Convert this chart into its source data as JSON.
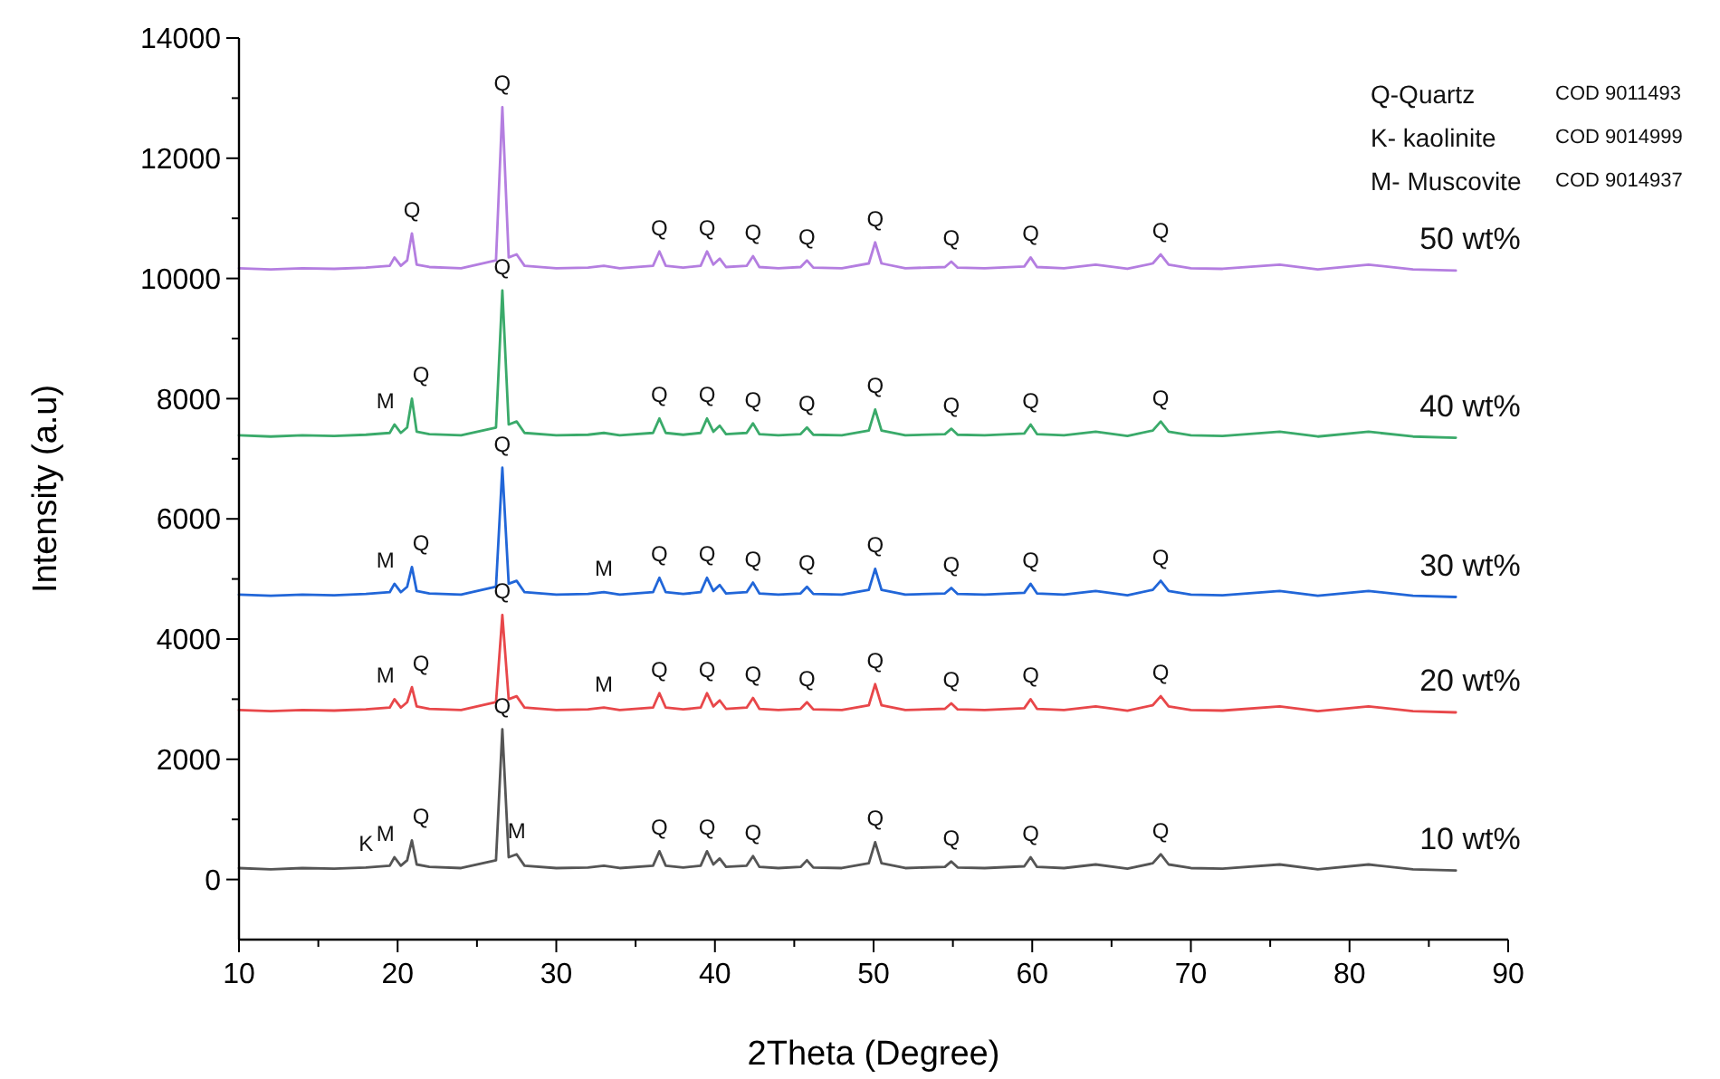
{
  "chart_data": {
    "type": "line",
    "xlabel": "2Theta (Degree)",
    "ylabel": "Intensity (a.u)",
    "xlim": [
      10,
      90
    ],
    "ylim": [
      -1000,
      14000
    ],
    "xticks": [
      10,
      {
        "value": 15,
        "label": null
      },
      20,
      {
        "value": 25,
        "label": null
      },
      30,
      {
        "value": 35,
        "label": null
      },
      40,
      {
        "value": 45,
        "label": null
      },
      50,
      {
        "value": 55,
        "label": null
      },
      60,
      {
        "value": 65,
        "label": null
      },
      70,
      {
        "value": 75,
        "label": null
      },
      80,
      {
        "value": 85,
        "label": null
      },
      90
    ],
    "yticks": [
      0,
      {
        "value": 1000,
        "label": null
      },
      2000,
      {
        "value": 3000,
        "label": null
      },
      4000,
      {
        "value": 5000,
        "label": null
      },
      6000,
      {
        "value": 7000,
        "label": null
      },
      8000,
      {
        "value": 9000,
        "label": null
      },
      10000,
      {
        "value": 11000,
        "label": null
      },
      12000,
      {
        "value": 13000,
        "label": null
      },
      14000
    ],
    "x": [
      10,
      12,
      14,
      16,
      18,
      19.5,
      19.8,
      20.2,
      20.6,
      20.9,
      21.2,
      22,
      24,
      26.2,
      26.6,
      27.0,
      27.5,
      28,
      30,
      32,
      33,
      34,
      36.1,
      36.5,
      36.9,
      38,
      39.1,
      39.5,
      39.9,
      40.3,
      40.7,
      42.0,
      42.4,
      42.8,
      44,
      45.4,
      45.8,
      46.2,
      48,
      49.7,
      50.1,
      50.5,
      52,
      54.5,
      54.9,
      55.3,
      57,
      59.5,
      59.9,
      60.3,
      62,
      64,
      66,
      67.6,
      68.1,
      68.6,
      70,
      72,
      75.6,
      78,
      81.2,
      84,
      86.7
    ],
    "series": [
      {
        "name": "50 wt%",
        "color": "#b47ee0",
        "values": [
          10170,
          10150,
          10170,
          10160,
          10180,
          10210,
          10350,
          10210,
          10300,
          10750,
          10230,
          10190,
          10170,
          10300,
          12850,
          10350,
          10400,
          10210,
          10170,
          10180,
          10210,
          10170,
          10210,
          10450,
          10210,
          10180,
          10210,
          10450,
          10230,
          10330,
          10190,
          10210,
          10370,
          10190,
          10170,
          10190,
          10300,
          10180,
          10170,
          10250,
          10600,
          10250,
          10170,
          10190,
          10280,
          10180,
          10170,
          10200,
          10350,
          10190,
          10170,
          10230,
          10160,
          10250,
          10400,
          10230,
          10170,
          10160,
          10230,
          10150,
          10230,
          10150,
          10130
        ]
      },
      {
        "name": "40 wt%",
        "color": "#3aaa6a",
        "values": [
          7390,
          7370,
          7390,
          7380,
          7400,
          7430,
          7570,
          7430,
          7520,
          8000,
          7450,
          7410,
          7390,
          7520,
          9800,
          7570,
          7620,
          7430,
          7390,
          7400,
          7430,
          7390,
          7430,
          7670,
          7430,
          7400,
          7430,
          7670,
          7450,
          7550,
          7410,
          7430,
          7590,
          7410,
          7390,
          7410,
          7520,
          7400,
          7390,
          7470,
          7820,
          7470,
          7390,
          7410,
          7500,
          7400,
          7390,
          7420,
          7570,
          7410,
          7390,
          7450,
          7380,
          7470,
          7620,
          7450,
          7390,
          7380,
          7450,
          7370,
          7450,
          7370,
          7350
        ]
      },
      {
        "name": "30 wt%",
        "color": "#2166d8",
        "values": [
          4740,
          4720,
          4740,
          4730,
          4750,
          4780,
          4920,
          4780,
          4870,
          5200,
          4800,
          4760,
          4740,
          4870,
          6850,
          4920,
          4970,
          4780,
          4740,
          4750,
          4780,
          4740,
          4780,
          5020,
          4780,
          4750,
          4780,
          5020,
          4800,
          4900,
          4760,
          4780,
          4940,
          4760,
          4740,
          4760,
          4870,
          4750,
          4740,
          4820,
          5170,
          4820,
          4740,
          4760,
          4850,
          4750,
          4740,
          4770,
          4920,
          4760,
          4740,
          4800,
          4730,
          4820,
          4970,
          4800,
          4740,
          4730,
          4800,
          4720,
          4800,
          4720,
          4700
        ]
      },
      {
        "name": "20 wt%",
        "color": "#e8474a",
        "values": [
          2820,
          2800,
          2820,
          2810,
          2830,
          2860,
          3000,
          2860,
          2950,
          3200,
          2880,
          2840,
          2820,
          2950,
          4400,
          3000,
          3050,
          2860,
          2820,
          2830,
          2860,
          2820,
          2860,
          3100,
          2860,
          2830,
          2860,
          3100,
          2880,
          2980,
          2840,
          2860,
          3020,
          2840,
          2820,
          2840,
          2950,
          2830,
          2820,
          2900,
          3250,
          2900,
          2820,
          2840,
          2930,
          2830,
          2820,
          2850,
          3000,
          2840,
          2820,
          2880,
          2810,
          2900,
          3050,
          2880,
          2820,
          2810,
          2880,
          2800,
          2880,
          2800,
          2780
        ]
      },
      {
        "name": "10 wt%",
        "color": "#555555",
        "values": [
          190,
          170,
          190,
          180,
          200,
          230,
          370,
          230,
          320,
          650,
          250,
          210,
          190,
          320,
          2500,
          370,
          420,
          230,
          190,
          200,
          230,
          190,
          230,
          470,
          230,
          200,
          230,
          470,
          250,
          350,
          210,
          230,
          390,
          210,
          190,
          210,
          320,
          200,
          190,
          270,
          620,
          270,
          190,
          210,
          300,
          200,
          190,
          220,
          370,
          210,
          190,
          250,
          180,
          270,
          420,
          250,
          190,
          180,
          250,
          170,
          250,
          170,
          150
        ]
      }
    ],
    "annotations": [
      "Q-Quartz",
      "COD 9011493",
      "K- kaolinite",
      "COD 9014999",
      "M- Muscovite",
      "COD 9014937",
      {
        "text": "Q",
        "x": 20.9,
        "y": 10750
      },
      {
        "text": "Q",
        "x": 26.6,
        "y": 12850
      },
      {
        "text": "Q",
        "x": 36.5,
        "y": 10450
      },
      {
        "text": "Q",
        "x": 39.5,
        "y": 10450
      },
      {
        "text": "Q",
        "x": 42.4,
        "y": 10370
      },
      {
        "text": "Q",
        "x": 45.8,
        "y": 10300
      },
      {
        "text": "Q",
        "x": 50.1,
        "y": 10600
      },
      {
        "text": "Q",
        "x": 54.9,
        "y": 10280
      },
      {
        "text": "Q",
        "x": 59.9,
        "y": 10350
      },
      {
        "text": "Q",
        "x": 68.1,
        "y": 10400
      },
      {
        "text": "M",
        "x": 19.8,
        "y": 7570
      },
      {
        "text": "Q",
        "x": 20.9,
        "y": 8000
      },
      {
        "text": "Q",
        "x": 26.6,
        "y": 9800
      },
      {
        "text": "Q",
        "x": 36.5,
        "y": 7670
      },
      {
        "text": "Q",
        "x": 39.5,
        "y": 7670
      },
      {
        "text": "Q",
        "x": 42.4,
        "y": 7590
      },
      {
        "text": "Q",
        "x": 45.8,
        "y": 7520
      },
      {
        "text": "Q",
        "x": 50.1,
        "y": 7820
      },
      {
        "text": "Q",
        "x": 54.9,
        "y": 7500
      },
      {
        "text": "Q",
        "x": 59.9,
        "y": 7570
      },
      {
        "text": "Q",
        "x": 68.1,
        "y": 7620
      },
      {
        "text": "M",
        "x": 19.8,
        "y": 4920
      },
      {
        "text": "Q",
        "x": 20.9,
        "y": 5200
      },
      {
        "text": "Q",
        "x": 26.6,
        "y": 6850
      },
      {
        "text": "M",
        "x": 33,
        "y": 4780
      },
      {
        "text": "Q",
        "x": 36.5,
        "y": 5020
      },
      {
        "text": "Q",
        "x": 39.5,
        "y": 5020
      },
      {
        "text": "Q",
        "x": 42.4,
        "y": 4940
      },
      {
        "text": "Q",
        "x": 45.8,
        "y": 4870
      },
      {
        "text": "Q",
        "x": 50.1,
        "y": 5170
      },
      {
        "text": "Q",
        "x": 54.9,
        "y": 4850
      },
      {
        "text": "Q",
        "x": 59.9,
        "y": 4920
      },
      {
        "text": "Q",
        "x": 68.1,
        "y": 4970
      },
      {
        "text": "M",
        "x": 19.8,
        "y": 3000
      },
      {
        "text": "Q",
        "x": 20.9,
        "y": 3200
      },
      {
        "text": "Q",
        "x": 26.6,
        "y": 4400
      },
      {
        "text": "M",
        "x": 33,
        "y": 2860
      },
      {
        "text": "Q",
        "x": 36.5,
        "y": 3100
      },
      {
        "text": "Q",
        "x": 39.5,
        "y": 3100
      },
      {
        "text": "Q",
        "x": 42.4,
        "y": 3020
      },
      {
        "text": "Q",
        "x": 45.8,
        "y": 2950
      },
      {
        "text": "Q",
        "x": 50.1,
        "y": 3250
      },
      {
        "text": "Q",
        "x": 54.9,
        "y": 2930
      },
      {
        "text": "Q",
        "x": 59.9,
        "y": 3000
      },
      {
        "text": "Q",
        "x": 68.1,
        "y": 3050
      },
      {
        "text": "K",
        "x": 18,
        "y": 200
      },
      {
        "text": "M",
        "x": 19.8,
        "y": 370
      },
      {
        "text": "Q",
        "x": 20.9,
        "y": 650
      },
      {
        "text": "Q",
        "x": 26.6,
        "y": 2500
      },
      {
        "text": "M",
        "x": 27.5,
        "y": 420
      },
      {
        "text": "Q",
        "x": 36.5,
        "y": 470
      },
      {
        "text": "Q",
        "x": 39.5,
        "y": 470
      },
      {
        "text": "Q",
        "x": 42.4,
        "y": 390
      },
      {
        "text": "Q",
        "x": 50.1,
        "y": 620
      },
      {
        "text": "Q",
        "x": 54.9,
        "y": 300
      },
      {
        "text": "Q",
        "x": 59.9,
        "y": 370
      },
      {
        "text": "Q",
        "x": 68.1,
        "y": 420
      }
    ]
  }
}
